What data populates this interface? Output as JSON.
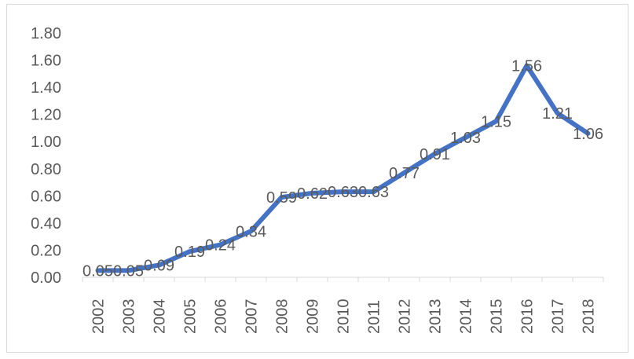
{
  "chart_data": {
    "type": "line",
    "title": "",
    "xlabel": "",
    "ylabel": "",
    "categories": [
      "2002",
      "2003",
      "2004",
      "2005",
      "2006",
      "2007",
      "2008",
      "2009",
      "2010",
      "2011",
      "2012",
      "2013",
      "2014",
      "2015",
      "2016",
      "2017",
      "2018"
    ],
    "values": [
      0.05,
      0.05,
      0.09,
      0.19,
      0.24,
      0.34,
      0.59,
      0.62,
      0.63,
      0.63,
      0.77,
      0.91,
      1.03,
      1.15,
      1.56,
      1.21,
      1.06
    ],
    "value_labels": [
      "0.05",
      "0.05",
      "0.09",
      "0.19",
      "0.24",
      "0.34",
      "0.59",
      "0.62",
      "0.63",
      "0.63",
      "0.77",
      "0.91",
      "1.03",
      "1.15",
      "1.56",
      "1.21",
      "1.06"
    ],
    "ylim": [
      0,
      1.8
    ],
    "yticks": [
      "0.00",
      "0.20",
      "0.40",
      "0.60",
      "0.80",
      "1.00",
      "1.20",
      "1.40",
      "1.60",
      "1.80"
    ],
    "grid": false,
    "legend": "none",
    "line_color": "#4472c4"
  }
}
